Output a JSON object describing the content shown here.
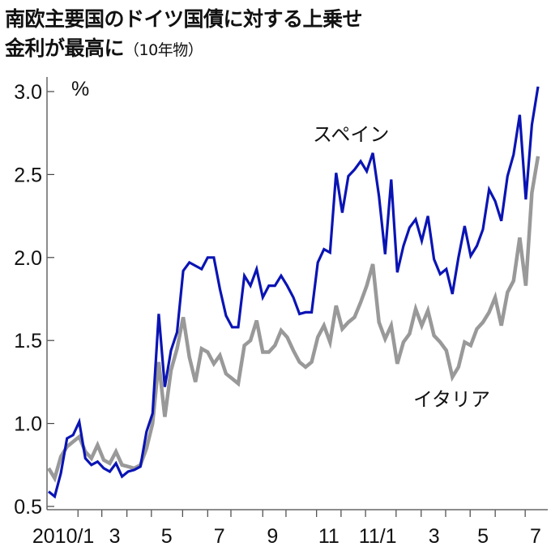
{
  "title": {
    "line1": "南欧主要国のドイツ国債に対する上乗せ",
    "line2": "金利が最高に",
    "note": "（10年物）"
  },
  "chart_data": {
    "type": "line",
    "title": "南欧主要国のドイツ国債に対する上乗せ金利が最高に（10年物）",
    "ylabel": "%",
    "xlabel": "",
    "x_unit": "week index (weekly data, late Dec 2009 – Jul 2011)",
    "ylim": [
      0.5,
      3.0
    ],
    "yticks": [
      0.5,
      1.0,
      1.5,
      2.0,
      2.5,
      3.0
    ],
    "ytick_labels": [
      "0.5",
      "1.0",
      "1.5",
      "2.0",
      "2.5",
      "3.0"
    ],
    "xlim": [
      0,
      80
    ],
    "month_boundaries": [
      4.8,
      8.7,
      12.8,
      16.8,
      21.9,
      26,
      29.8,
      35,
      38.8,
      43.8,
      47.8,
      51.8,
      56.8,
      60.9,
      64.9,
      68.9,
      73,
      77.9
    ],
    "xtick_labels": [
      {
        "label": "2010/1",
        "at": 2.4
      },
      {
        "label": "3",
        "at": 10.8
      },
      {
        "label": "5",
        "at": 19.3
      },
      {
        "label": "7",
        "at": 27.9
      },
      {
        "label": "9",
        "at": 36.6
      },
      {
        "label": "11",
        "at": 45.8
      },
      {
        "label": "11/1",
        "at": 53.8
      },
      {
        "label": "3",
        "at": 63
      },
      {
        "label": "5",
        "at": 71
      },
      {
        "label": "7",
        "at": 79.6
      }
    ],
    "grid": false,
    "series": [
      {
        "name": "スペイン",
        "color": "#0a14b4",
        "values": [
          0.59,
          0.56,
          0.7,
          0.91,
          0.93,
          1.01,
          0.79,
          0.75,
          0.77,
          0.73,
          0.71,
          0.76,
          0.68,
          0.71,
          0.72,
          0.74,
          0.95,
          1.06,
          1.66,
          1.22,
          1.44,
          1.55,
          1.92,
          1.97,
          1.95,
          1.93,
          2.0,
          2.0,
          1.81,
          1.65,
          1.58,
          1.58,
          1.89,
          1.83,
          1.93,
          1.76,
          1.83,
          1.83,
          1.89,
          1.83,
          1.76,
          1.66,
          1.67,
          1.67,
          1.97,
          2.05,
          2.03,
          2.51,
          2.27,
          2.49,
          2.53,
          2.58,
          2.52,
          2.63,
          2.37,
          2.02,
          2.47,
          1.91,
          2.07,
          2.18,
          2.23,
          2.1,
          2.25,
          1.99,
          1.9,
          1.93,
          1.78,
          2.0,
          2.19,
          2.01,
          2.07,
          2.17,
          2.41,
          2.34,
          2.22,
          2.49,
          2.62,
          2.86,
          2.35,
          2.8,
          3.03
        ]
      },
      {
        "name": "イタリア",
        "color": "#999999",
        "values": [
          0.73,
          0.67,
          0.8,
          0.86,
          0.89,
          0.92,
          0.83,
          0.79,
          0.87,
          0.78,
          0.76,
          0.83,
          0.75,
          0.74,
          0.73,
          0.75,
          0.85,
          1.0,
          1.37,
          1.04,
          1.32,
          1.45,
          1.64,
          1.4,
          1.25,
          1.45,
          1.43,
          1.36,
          1.41,
          1.3,
          1.27,
          1.24,
          1.47,
          1.5,
          1.62,
          1.43,
          1.43,
          1.47,
          1.56,
          1.52,
          1.44,
          1.37,
          1.34,
          1.37,
          1.52,
          1.59,
          1.49,
          1.71,
          1.57,
          1.61,
          1.64,
          1.73,
          1.83,
          1.96,
          1.61,
          1.51,
          1.59,
          1.36,
          1.49,
          1.54,
          1.69,
          1.59,
          1.68,
          1.53,
          1.49,
          1.44,
          1.28,
          1.34,
          1.49,
          1.47,
          1.57,
          1.61,
          1.67,
          1.76,
          1.59,
          1.79,
          1.86,
          2.12,
          1.83,
          2.39,
          2.61
        ]
      }
    ]
  }
}
